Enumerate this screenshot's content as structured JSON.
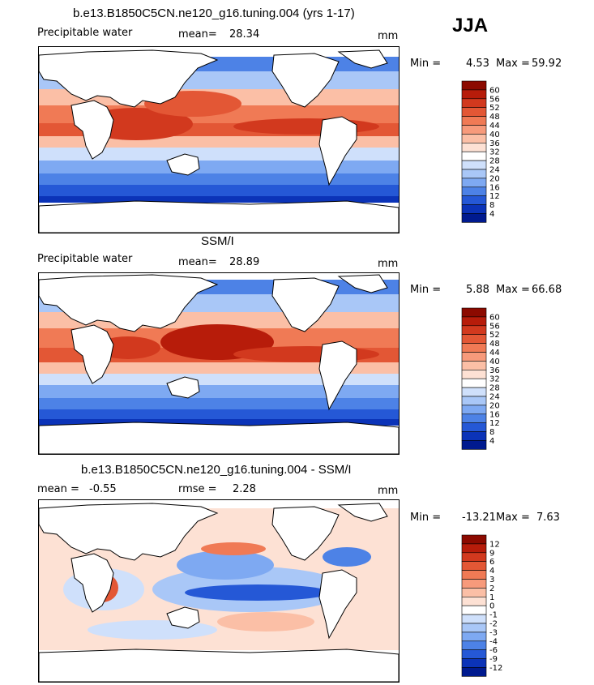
{
  "season": "JJA",
  "panels": [
    {
      "title": "b.e13.B1850C5CN.ne120_g16.tuning.004 (yrs 1-17)",
      "left_label": "Precipitable water",
      "mid_label": "mean=",
      "mid_value": "28.34",
      "unit": "mm",
      "min_label": "Min =",
      "min_value": "4.53",
      "max_label": "Max =",
      "max_value": "59.92",
      "colorbar_labels": [
        "60",
        "56",
        "52",
        "48",
        "44",
        "40",
        "36",
        "32",
        "28",
        "24",
        "20",
        "16",
        "12",
        "8",
        "4"
      ],
      "colorbar_colors": [
        "#8c0a00",
        "#b71c0a",
        "#d2391e",
        "#e35735",
        "#f07a55",
        "#f79a7b",
        "#fbbfa6",
        "#fde1d4",
        "#ffffff",
        "#cfe0fb",
        "#a9c7f7",
        "#7ea9f2",
        "#4d82e6",
        "#2558d6",
        "#0b33b8",
        "#001a8f"
      ]
    },
    {
      "title": "SSM/I",
      "left_label": "Precipitable water",
      "mid_label": "mean=",
      "mid_value": "28.89",
      "unit": "mm",
      "min_label": "Min =",
      "min_value": "5.88",
      "max_label": "Max =",
      "max_value": "66.68",
      "colorbar_labels": [
        "60",
        "56",
        "52",
        "48",
        "44",
        "40",
        "36",
        "32",
        "28",
        "24",
        "20",
        "16",
        "12",
        "8",
        "4"
      ],
      "colorbar_colors": [
        "#8c0a00",
        "#b71c0a",
        "#d2391e",
        "#e35735",
        "#f07a55",
        "#f79a7b",
        "#fbbfa6",
        "#fde1d4",
        "#ffffff",
        "#cfe0fb",
        "#a9c7f7",
        "#7ea9f2",
        "#4d82e6",
        "#2558d6",
        "#0b33b8",
        "#001a8f"
      ]
    },
    {
      "title": "b.e13.B1850C5CN.ne120_g16.tuning.004 - SSM/I",
      "left_label": "mean =",
      "left_value": "-0.55",
      "mid_label": "rmse =",
      "mid_value": "2.28",
      "unit": "mm",
      "min_label": "Min =",
      "min_value": "-13.21",
      "max_label": "Max =",
      "max_value": "7.63",
      "colorbar_labels": [
        "12",
        "9",
        "6",
        "4",
        "3",
        "2",
        "1",
        "0",
        "-1",
        "-2",
        "-3",
        "-4",
        "-6",
        "-9",
        "-12"
      ],
      "colorbar_colors": [
        "#8c0a00",
        "#b71c0a",
        "#d2391e",
        "#e35735",
        "#f07a55",
        "#f79a7b",
        "#fbbfa6",
        "#fde1d4",
        "#ffffff",
        "#cfe0fb",
        "#a9c7f7",
        "#7ea9f2",
        "#4d82e6",
        "#2558d6",
        "#0b33b8",
        "#001a8f"
      ]
    }
  ]
}
